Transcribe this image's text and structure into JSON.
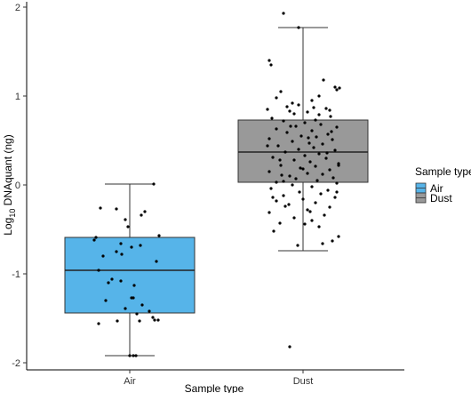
{
  "chart_data": {
    "type": "box",
    "xlabel": "Sample type",
    "ylabel_pre": "Log",
    "ylabel_sub": "10",
    "ylabel_post": " DNAquant (ng)",
    "ylim": [
      -2.0,
      2.0
    ],
    "yticks": [
      2,
      1,
      0,
      -1,
      -2
    ],
    "ytick_labels": [
      "2",
      "1",
      "0",
      "-1",
      "-2"
    ],
    "categories": [
      "Air",
      "Dust"
    ],
    "grid": false,
    "legend": {
      "title": "Sample type",
      "position": "right",
      "items": [
        {
          "label": "Air",
          "color": "#56b4e9"
        },
        {
          "label": "Dust",
          "color": "#999999"
        }
      ]
    },
    "boxes": [
      {
        "category": "Air",
        "color": "#56b4e9",
        "whisker_low": -1.92,
        "q1": -1.44,
        "median": -0.96,
        "q3": -0.59,
        "whisker_high": 0.01,
        "points": [
          [
            0.01,
            0.27
          ],
          [
            -0.26,
            -0.33
          ],
          [
            -0.3,
            0.17
          ],
          [
            -0.34,
            0.13
          ],
          [
            -0.27,
            -0.15
          ],
          [
            -0.39,
            -0.05
          ],
          [
            -0.47,
            -0.02
          ],
          [
            -0.57,
            0.33
          ],
          [
            -0.59,
            -0.38
          ],
          [
            -0.62,
            -0.4
          ],
          [
            -0.66,
            -0.1
          ],
          [
            -0.68,
            0.12
          ],
          [
            -0.7,
            0.02
          ],
          [
            -0.75,
            -0.15
          ],
          [
            -0.78,
            -0.09
          ],
          [
            -0.8,
            -0.3
          ],
          [
            -0.86,
            0.3
          ],
          [
            -0.96,
            -0.35
          ],
          [
            -1.06,
            -0.2
          ],
          [
            -1.08,
            -0.1
          ],
          [
            -1.1,
            -0.24
          ],
          [
            -1.13,
            0.05
          ],
          [
            -1.27,
            0.02
          ],
          [
            -1.27,
            0.04
          ],
          [
            -1.3,
            -0.27
          ],
          [
            -1.35,
            0.14
          ],
          [
            -1.39,
            -0.05
          ],
          [
            -1.42,
            0.22
          ],
          [
            -1.45,
            0.08
          ],
          [
            -1.49,
            0.26
          ],
          [
            -1.52,
            0.32
          ],
          [
            -1.53,
            -0.14
          ],
          [
            -1.52,
            0.28
          ],
          [
            -1.53,
            0.11
          ],
          [
            -1.92,
            0.0
          ],
          [
            -1.92,
            0.04
          ],
          [
            -1.92,
            0.07
          ],
          [
            -1.56,
            -0.35
          ]
        ]
      },
      {
        "category": "Dust",
        "color": "#999999",
        "whisker_low": -0.74,
        "q1": 0.03,
        "median": 0.37,
        "q3": 0.73,
        "whisker_high": 1.77,
        "points": [
          [
            1.93,
            -0.22
          ],
          [
            1.77,
            -0.05
          ],
          [
            1.4,
            -0.38
          ],
          [
            1.35,
            -0.36
          ],
          [
            1.18,
            0.23
          ],
          [
            1.1,
            0.36
          ],
          [
            1.09,
            0.41
          ],
          [
            1.07,
            0.38
          ],
          [
            1.05,
            -0.25
          ],
          [
            0.98,
            -0.3
          ],
          [
            0.9,
            -0.05
          ],
          [
            0.88,
            -0.18
          ],
          [
            0.87,
            0.12
          ],
          [
            0.86,
            0.26
          ],
          [
            0.85,
            -0.4
          ],
          [
            0.83,
            -0.15
          ],
          [
            0.82,
            0.05
          ],
          [
            0.8,
            -0.1
          ],
          [
            0.79,
            0.18
          ],
          [
            0.77,
            0.31
          ],
          [
            0.75,
            -0.35
          ],
          [
            0.72,
            -0.22
          ],
          [
            0.7,
            0.02
          ],
          [
            0.68,
            0.2
          ],
          [
            0.66,
            -0.08
          ],
          [
            0.65,
            0.38
          ],
          [
            0.63,
            -0.3
          ],
          [
            0.61,
            0.1
          ],
          [
            0.59,
            -0.18
          ],
          [
            0.57,
            0.28
          ],
          [
            0.55,
            -0.02
          ],
          [
            0.54,
            0.15
          ],
          [
            0.52,
            -0.38
          ],
          [
            0.51,
            0.33
          ],
          [
            0.49,
            -0.12
          ],
          [
            0.47,
            0.07
          ],
          [
            0.46,
            0.22
          ],
          [
            0.44,
            -0.28
          ],
          [
            0.42,
            0.12
          ],
          [
            0.4,
            -0.05
          ],
          [
            0.39,
            0.36
          ],
          [
            0.37,
            -0.2
          ],
          [
            0.35,
            0.18
          ],
          [
            0.33,
            0.02
          ],
          [
            0.31,
            -0.34
          ],
          [
            0.3,
            0.26
          ],
          [
            0.28,
            -0.1
          ],
          [
            0.26,
            0.08
          ],
          [
            0.24,
            0.4
          ],
          [
            0.22,
            -0.25
          ],
          [
            0.21,
            0.14
          ],
          [
            0.19,
            -0.03
          ],
          [
            0.17,
            0.3
          ],
          [
            0.15,
            -0.38
          ],
          [
            0.13,
            0.05
          ],
          [
            0.12,
            0.22
          ],
          [
            0.1,
            -0.15
          ],
          [
            0.08,
            0.34
          ],
          [
            0.07,
            -0.08
          ],
          [
            0.05,
            0.16
          ],
          [
            0.03,
            -0.3
          ],
          [
            0.02,
            0.38
          ],
          [
            0.0,
            -0.12
          ],
          [
            -0.02,
            0.1
          ],
          [
            -0.04,
            -0.36
          ],
          [
            -0.06,
            0.28
          ],
          [
            -0.08,
            -0.04
          ],
          [
            -0.1,
            0.2
          ],
          [
            -0.12,
            -0.22
          ],
          [
            -0.14,
            0.36
          ],
          [
            -0.16,
            0.0
          ],
          [
            -0.18,
            -0.3
          ],
          [
            -0.2,
            0.14
          ],
          [
            -0.22,
            -0.16
          ],
          [
            -0.25,
            0.3
          ],
          [
            -0.28,
            0.05
          ],
          [
            -0.31,
            -0.38
          ],
          [
            -0.34,
            0.24
          ],
          [
            -0.37,
            -0.1
          ],
          [
            -0.4,
            0.1
          ],
          [
            -0.43,
            -0.26
          ],
          [
            -0.47,
            0.18
          ],
          [
            -0.52,
            -0.33
          ],
          [
            -0.58,
            0.4
          ],
          [
            -0.63,
            0.33
          ],
          [
            -0.66,
            0.22
          ],
          [
            -0.68,
            -0.06
          ],
          [
            -1.82,
            -0.15
          ],
          [
            0.95,
            0.1
          ],
          [
            0.6,
            0.32
          ],
          [
            0.28,
            -0.26
          ],
          [
            -0.08,
            0.38
          ],
          [
            0.73,
            0.14
          ],
          [
            0.44,
            -0.4
          ],
          [
            0.18,
            0.0
          ],
          [
            -0.24,
            -0.2
          ],
          [
            1.0,
            0.18
          ],
          [
            0.66,
            -0.14
          ],
          [
            0.36,
            0.27
          ],
          [
            0.04,
            -0.22
          ],
          [
            -0.3,
            0.08
          ],
          [
            0.84,
            0.3
          ],
          [
            0.53,
            0.06
          ],
          [
            0.22,
            0.4
          ],
          [
            -0.14,
            -0.34
          ],
          [
            0.92,
            -0.12
          ],
          [
            0.11,
            -0.24
          ],
          [
            -0.44,
            0.02
          ]
        ]
      }
    ]
  }
}
